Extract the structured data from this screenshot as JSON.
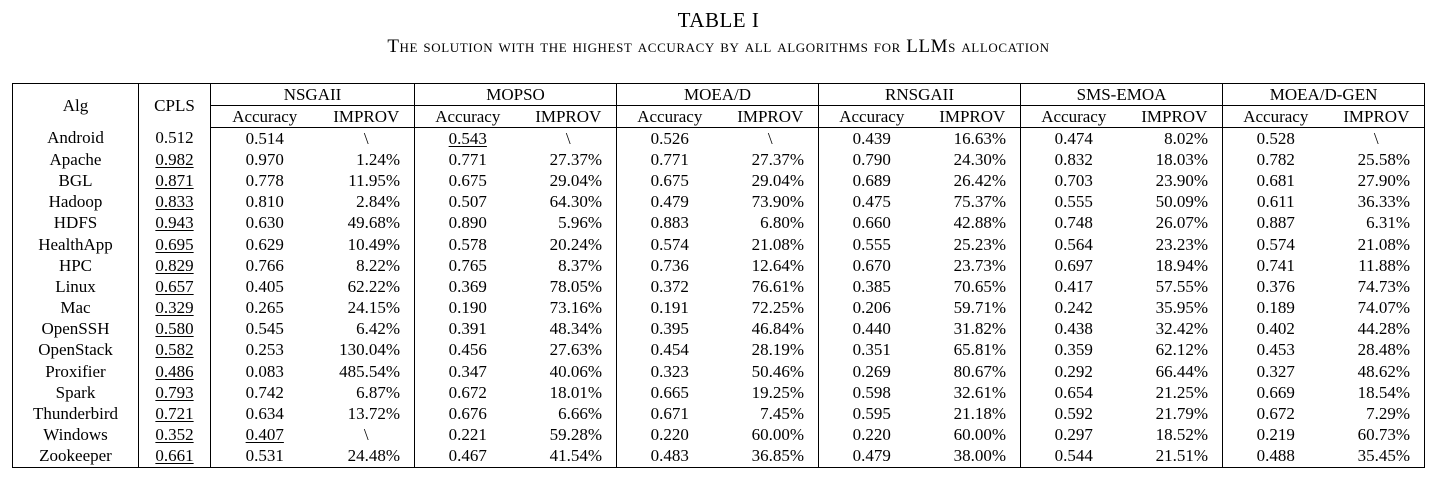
{
  "caption": {
    "table_number": "TABLE I",
    "title": "The solution with the highest accuracy by all algorithms for LLMs allocation"
  },
  "header": {
    "alg": "Alg",
    "cpls": "CPLS",
    "groups": [
      "NSGAII",
      "MOPSO",
      "MOEA/D",
      "RNSGAII",
      "SMS-EMOA",
      "MOEA/D-GEN"
    ],
    "accuracy": "Accuracy",
    "improv": "IMPROV"
  },
  "rows": [
    {
      "alg": "Android",
      "cpls": "0.512",
      "cells": [
        [
          "0.514",
          "\\"
        ],
        [
          "0.543",
          "\\"
        ],
        [
          "0.526",
          "\\"
        ],
        [
          "0.439",
          "16.63%"
        ],
        [
          "0.474",
          "8.02%"
        ],
        [
          "0.528",
          "\\"
        ]
      ]
    },
    {
      "alg": "Apache",
      "cpls": "0.982",
      "cells": [
        [
          "0.970",
          "1.24%"
        ],
        [
          "0.771",
          "27.37%"
        ],
        [
          "0.771",
          "27.37%"
        ],
        [
          "0.790",
          "24.30%"
        ],
        [
          "0.832",
          "18.03%"
        ],
        [
          "0.782",
          "25.58%"
        ]
      ]
    },
    {
      "alg": "BGL",
      "cpls": "0.871",
      "cells": [
        [
          "0.778",
          "11.95%"
        ],
        [
          "0.675",
          "29.04%"
        ],
        [
          "0.675",
          "29.04%"
        ],
        [
          "0.689",
          "26.42%"
        ],
        [
          "0.703",
          "23.90%"
        ],
        [
          "0.681",
          "27.90%"
        ]
      ]
    },
    {
      "alg": "Hadoop",
      "cpls": "0.833",
      "cells": [
        [
          "0.810",
          "2.84%"
        ],
        [
          "0.507",
          "64.30%"
        ],
        [
          "0.479",
          "73.90%"
        ],
        [
          "0.475",
          "75.37%"
        ],
        [
          "0.555",
          "50.09%"
        ],
        [
          "0.611",
          "36.33%"
        ]
      ]
    },
    {
      "alg": "HDFS",
      "cpls": "0.943",
      "cells": [
        [
          "0.630",
          "49.68%"
        ],
        [
          "0.890",
          "5.96%"
        ],
        [
          "0.883",
          "6.80%"
        ],
        [
          "0.660",
          "42.88%"
        ],
        [
          "0.748",
          "26.07%"
        ],
        [
          "0.887",
          "6.31%"
        ]
      ]
    },
    {
      "alg": "HealthApp",
      "cpls": "0.695",
      "cells": [
        [
          "0.629",
          "10.49%"
        ],
        [
          "0.578",
          "20.24%"
        ],
        [
          "0.574",
          "21.08%"
        ],
        [
          "0.555",
          "25.23%"
        ],
        [
          "0.564",
          "23.23%"
        ],
        [
          "0.574",
          "21.08%"
        ]
      ]
    },
    {
      "alg": "HPC",
      "cpls": "0.829",
      "cells": [
        [
          "0.766",
          "8.22%"
        ],
        [
          "0.765",
          "8.37%"
        ],
        [
          "0.736",
          "12.64%"
        ],
        [
          "0.670",
          "23.73%"
        ],
        [
          "0.697",
          "18.94%"
        ],
        [
          "0.741",
          "11.88%"
        ]
      ]
    },
    {
      "alg": "Linux",
      "cpls": "0.657",
      "cells": [
        [
          "0.405",
          "62.22%"
        ],
        [
          "0.369",
          "78.05%"
        ],
        [
          "0.372",
          "76.61%"
        ],
        [
          "0.385",
          "70.65%"
        ],
        [
          "0.417",
          "57.55%"
        ],
        [
          "0.376",
          "74.73%"
        ]
      ]
    },
    {
      "alg": "Mac",
      "cpls": "0.329",
      "cells": [
        [
          "0.265",
          "24.15%"
        ],
        [
          "0.190",
          "73.16%"
        ],
        [
          "0.191",
          "72.25%"
        ],
        [
          "0.206",
          "59.71%"
        ],
        [
          "0.242",
          "35.95%"
        ],
        [
          "0.189",
          "74.07%"
        ]
      ]
    },
    {
      "alg": "OpenSSH",
      "cpls": "0.580",
      "cells": [
        [
          "0.545",
          "6.42%"
        ],
        [
          "0.391",
          "48.34%"
        ],
        [
          "0.395",
          "46.84%"
        ],
        [
          "0.440",
          "31.82%"
        ],
        [
          "0.438",
          "32.42%"
        ],
        [
          "0.402",
          "44.28%"
        ]
      ]
    },
    {
      "alg": "OpenStack",
      "cpls": "0.582",
      "cells": [
        [
          "0.253",
          "130.04%"
        ],
        [
          "0.456",
          "27.63%"
        ],
        [
          "0.454",
          "28.19%"
        ],
        [
          "0.351",
          "65.81%"
        ],
        [
          "0.359",
          "62.12%"
        ],
        [
          "0.453",
          "28.48%"
        ]
      ]
    },
    {
      "alg": "Proxifier",
      "cpls": "0.486",
      "cells": [
        [
          "0.083",
          "485.54%"
        ],
        [
          "0.347",
          "40.06%"
        ],
        [
          "0.323",
          "50.46%"
        ],
        [
          "0.269",
          "80.67%"
        ],
        [
          "0.292",
          "66.44%"
        ],
        [
          "0.327",
          "48.62%"
        ]
      ]
    },
    {
      "alg": "Spark",
      "cpls": "0.793",
      "cells": [
        [
          "0.742",
          "6.87%"
        ],
        [
          "0.672",
          "18.01%"
        ],
        [
          "0.665",
          "19.25%"
        ],
        [
          "0.598",
          "32.61%"
        ],
        [
          "0.654",
          "21.25%"
        ],
        [
          "0.669",
          "18.54%"
        ]
      ]
    },
    {
      "alg": "Thunderbird",
      "cpls": "0.721",
      "cells": [
        [
          "0.634",
          "13.72%"
        ],
        [
          "0.676",
          "6.66%"
        ],
        [
          "0.671",
          "7.45%"
        ],
        [
          "0.595",
          "21.18%"
        ],
        [
          "0.592",
          "21.79%"
        ],
        [
          "0.672",
          "7.29%"
        ]
      ]
    },
    {
      "alg": "Windows",
      "cpls": "0.352",
      "cells": [
        [
          "0.407",
          "\\"
        ],
        [
          "0.221",
          "59.28%"
        ],
        [
          "0.220",
          "60.00%"
        ],
        [
          "0.220",
          "60.00%"
        ],
        [
          "0.297",
          "18.52%"
        ],
        [
          "0.219",
          "60.73%"
        ]
      ]
    },
    {
      "alg": "Zookeeper",
      "cpls": "0.661",
      "cells": [
        [
          "0.531",
          "24.48%"
        ],
        [
          "0.467",
          "41.54%"
        ],
        [
          "0.483",
          "36.85%"
        ],
        [
          "0.479",
          "38.00%"
        ],
        [
          "0.544",
          "21.51%"
        ],
        [
          "0.488",
          "35.45%"
        ]
      ]
    }
  ],
  "underlined": {
    "cpls_rows": [
      1,
      2,
      3,
      4,
      5,
      6,
      7,
      8,
      9,
      10,
      11,
      12,
      13,
      14,
      15
    ],
    "accuracy_cells": [
      [
        0,
        1
      ],
      [
        14,
        0
      ]
    ]
  }
}
